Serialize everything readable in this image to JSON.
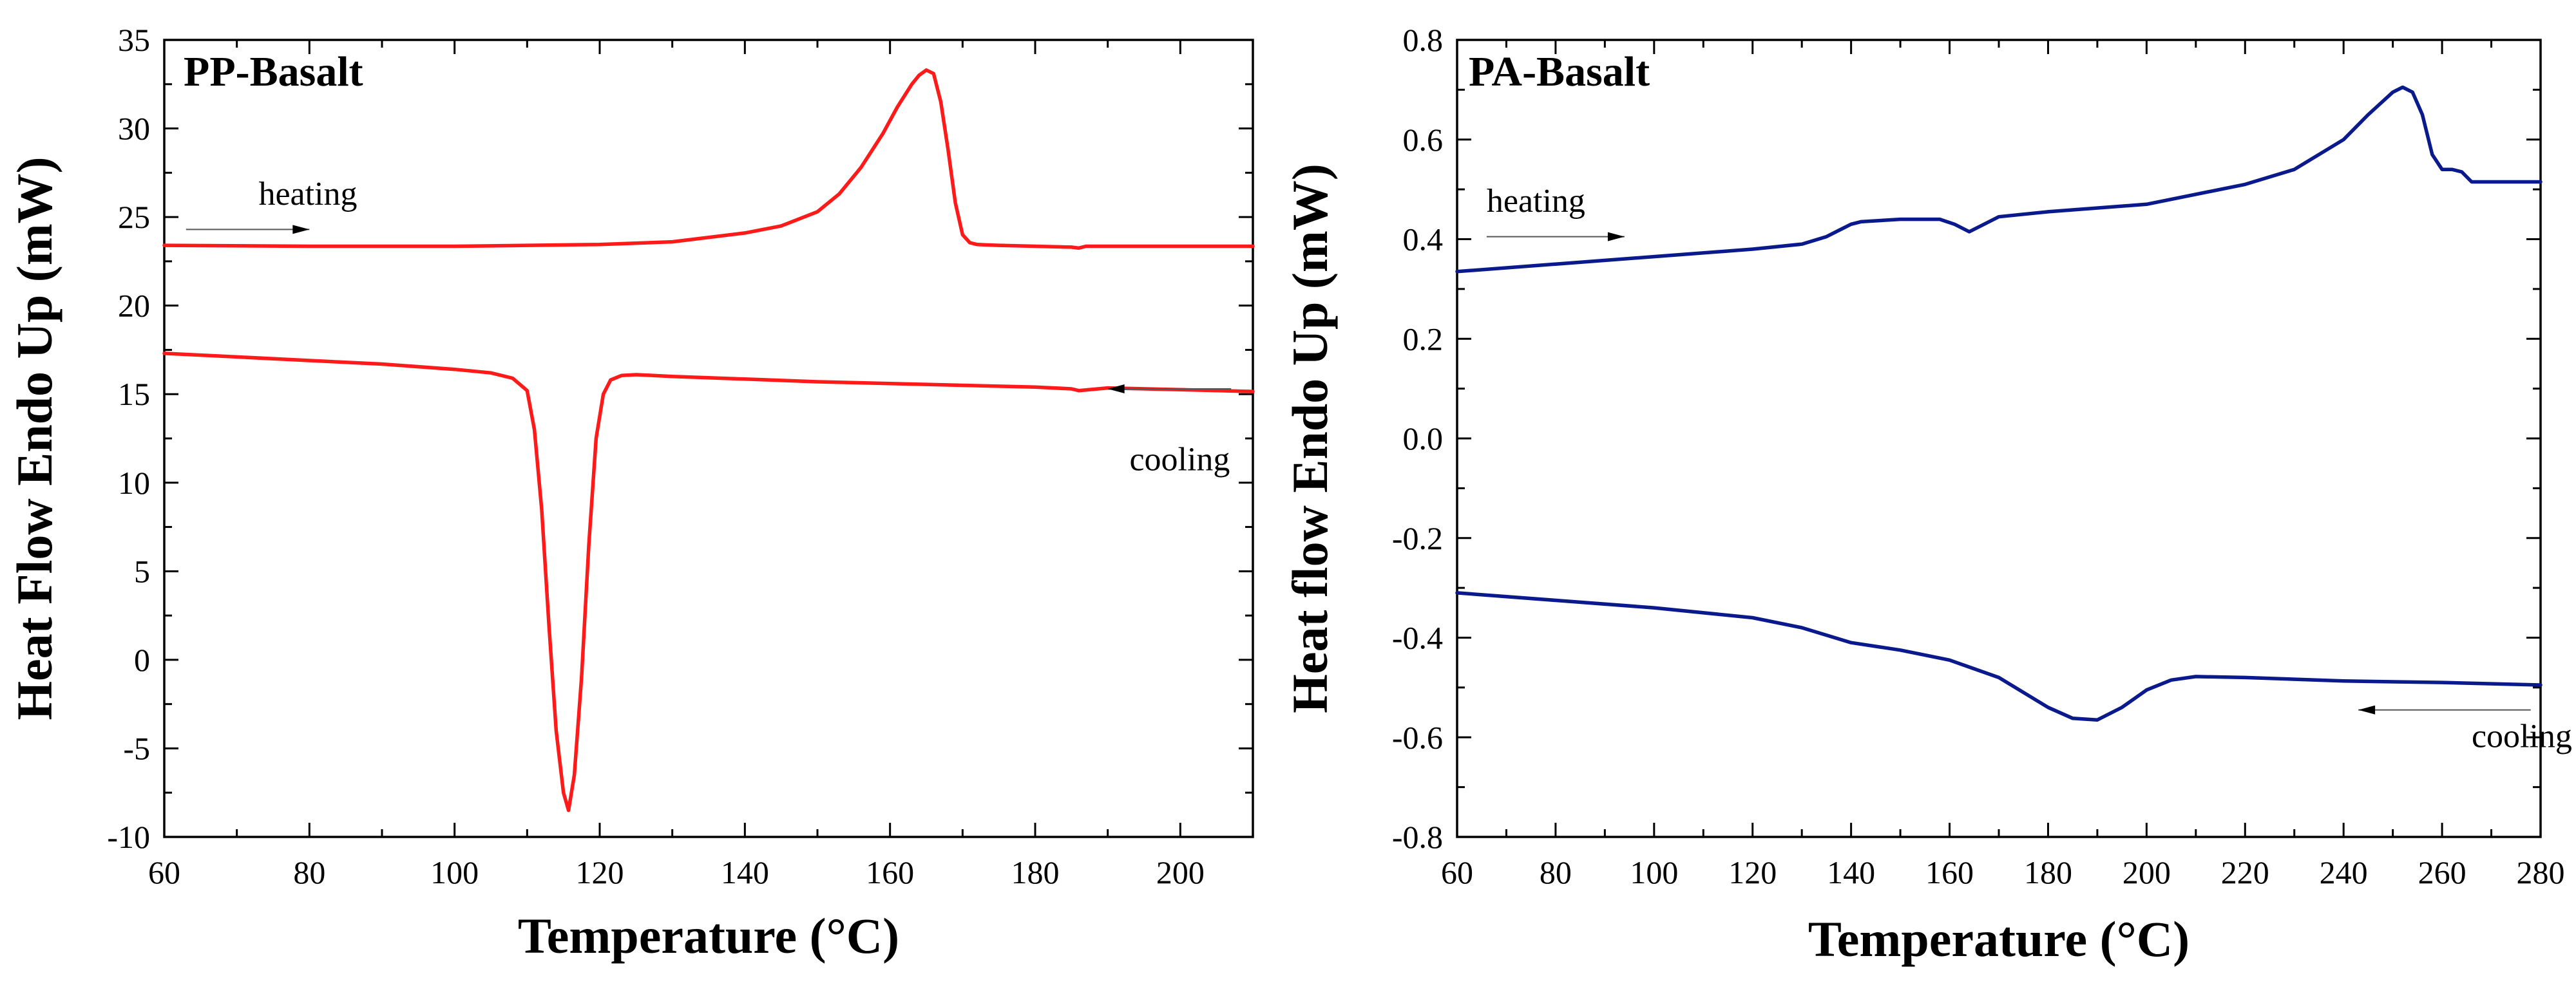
{
  "chart_data": [
    {
      "type": "line",
      "title": "PP-Basalt",
      "xlabel": "Temperature (°C)",
      "ylabel": "Heat Flow Endo Up (mW)",
      "xlim": [
        60,
        210
      ],
      "ylim": [
        -10,
        35
      ],
      "xticks": [
        60,
        80,
        100,
        120,
        140,
        160,
        180,
        200
      ],
      "yticks": [
        -10,
        -5,
        0,
        5,
        10,
        15,
        20,
        25,
        30,
        35
      ],
      "color": "#ff1a1a",
      "annotations": [
        {
          "text": "heating",
          "x": 73,
          "y": 25.7,
          "arrow": "right",
          "arrow_from": 63,
          "arrow_to": 80,
          "arrow_y": 24.3
        },
        {
          "text": "cooling",
          "x": 193,
          "y": 10.7,
          "arrow": "left",
          "arrow_from": 207,
          "arrow_to": 190,
          "arrow_y": 15.3
        }
      ],
      "series": [
        {
          "name": "heating",
          "x": [
            60,
            80,
            100,
            120,
            130,
            140,
            145,
            150,
            153,
            156,
            159,
            161,
            163,
            164,
            165,
            166,
            167,
            168,
            169,
            170,
            171,
            172,
            175,
            180,
            185,
            186,
            187,
            190,
            200,
            210
          ],
          "y": [
            23.4,
            23.35,
            23.35,
            23.45,
            23.6,
            24.1,
            24.5,
            25.3,
            26.3,
            27.8,
            29.7,
            31.2,
            32.5,
            33.0,
            33.3,
            33.1,
            31.5,
            28.8,
            25.8,
            24.0,
            23.55,
            23.45,
            23.4,
            23.35,
            23.3,
            23.25,
            23.35,
            23.35,
            23.35,
            23.35
          ]
        },
        {
          "name": "cooling",
          "x": [
            60,
            70,
            80,
            90,
            100,
            105,
            108,
            110,
            111,
            112,
            113,
            114,
            115,
            115.7,
            116.5,
            117.5,
            118.5,
            119.5,
            120.5,
            121.5,
            123,
            125,
            130,
            140,
            150,
            160,
            170,
            180,
            185,
            186,
            190,
            200,
            210
          ],
          "y": [
            17.3,
            17.1,
            16.9,
            16.7,
            16.4,
            16.2,
            15.9,
            15.2,
            13.0,
            8.5,
            2.0,
            -4.0,
            -7.5,
            -8.5,
            -6.5,
            -1.0,
            6.5,
            12.5,
            15.0,
            15.8,
            16.05,
            16.1,
            16.0,
            15.85,
            15.7,
            15.6,
            15.5,
            15.4,
            15.3,
            15.2,
            15.35,
            15.25,
            15.15
          ]
        }
      ]
    },
    {
      "type": "line",
      "title": "PA-Basalt",
      "xlabel": "Temperature (°C)",
      "ylabel": "Heat flow Endo Up (mW)",
      "xlim": [
        60,
        280
      ],
      "ylim": [
        -0.8,
        0.8
      ],
      "xticks": [
        60,
        80,
        100,
        120,
        140,
        160,
        180,
        200,
        220,
        240,
        260,
        280
      ],
      "yticks": [
        -0.8,
        -0.6,
        -0.4,
        -0.2,
        0.0,
        0.2,
        0.4,
        0.6,
        0.8
      ],
      "ytick_labels": [
        "-0.8",
        "-0.6",
        "-0.4",
        "-0.2",
        "0.0",
        "0.2",
        "0.4",
        "0.6",
        "0.8"
      ],
      "color": "#0a1a8c",
      "annotations": [
        {
          "text": "heating",
          "x": 66,
          "y": 0.455,
          "arrow": "right",
          "arrow_from": 66,
          "arrow_to": 94,
          "arrow_y": 0.405
        },
        {
          "text": "cooling",
          "x": 266,
          "y": -0.62,
          "arrow": "left",
          "arrow_from": 278,
          "arrow_to": 243,
          "arrow_y": -0.545
        }
      ],
      "series": [
        {
          "name": "heating",
          "x": [
            60,
            80,
            100,
            120,
            130,
            135,
            138,
            140,
            142,
            150,
            158,
            161,
            164,
            167,
            170,
            180,
            200,
            220,
            230,
            240,
            245,
            250,
            252,
            254,
            256,
            258,
            260,
            262,
            264,
            266,
            268,
            270,
            280
          ],
          "y": [
            0.335,
            0.35,
            0.365,
            0.38,
            0.39,
            0.405,
            0.42,
            0.43,
            0.435,
            0.44,
            0.44,
            0.43,
            0.415,
            0.43,
            0.445,
            0.455,
            0.47,
            0.51,
            0.54,
            0.6,
            0.65,
            0.695,
            0.705,
            0.695,
            0.65,
            0.57,
            0.54,
            0.54,
            0.535,
            0.515,
            0.515,
            0.515,
            0.515
          ]
        },
        {
          "name": "cooling",
          "x": [
            60,
            80,
            100,
            120,
            130,
            140,
            150,
            160,
            170,
            180,
            185,
            190,
            195,
            200,
            205,
            210,
            220,
            240,
            260,
            280
          ],
          "y": [
            -0.31,
            -0.325,
            -0.34,
            -0.36,
            -0.38,
            -0.41,
            -0.425,
            -0.445,
            -0.48,
            -0.54,
            -0.562,
            -0.565,
            -0.54,
            -0.505,
            -0.485,
            -0.478,
            -0.48,
            -0.487,
            -0.49,
            -0.495
          ]
        }
      ]
    }
  ]
}
